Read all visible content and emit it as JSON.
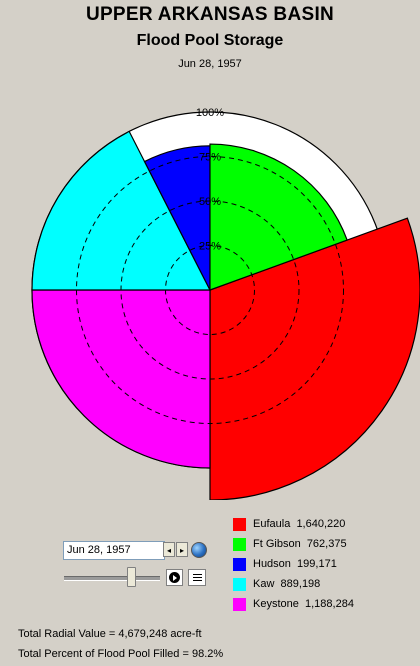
{
  "header": {
    "title": "UPPER ARKANSAS BASIN",
    "subtitle": "Flood Pool Storage",
    "date": "Jun 28, 1957"
  },
  "chart_data": {
    "type": "polar-area",
    "title": "UPPER ARKANSAS BASIN",
    "subtitle": "Flood Pool Storage",
    "radial_ticks": [
      "25%",
      "50%",
      "75%",
      "100%"
    ],
    "radial_tick_values": [
      25,
      50,
      75,
      100
    ],
    "categories": [
      "Eufaula",
      "Keystone",
      "Kaw",
      "Hudson",
      "Ft Gibson"
    ],
    "series": [
      {
        "name": "Eufaula",
        "storage": "1,640,220",
        "percent_filled": 118,
        "start_deg": -20,
        "end_deg": 90,
        "color": "#ff0000"
      },
      {
        "name": "Keystone",
        "storage": "1,188,284",
        "percent_filled": 100,
        "start_deg": 90,
        "end_deg": 180,
        "color": "#ff00ff"
      },
      {
        "name": "Kaw",
        "storage": "889,198",
        "percent_filled": 100,
        "start_deg": 180,
        "end_deg": 243,
        "color": "#00ffff"
      },
      {
        "name": "Hudson",
        "storage": "199,171",
        "percent_filled": 81,
        "start_deg": 243,
        "end_deg": 270,
        "color": "#0000ff"
      },
      {
        "name": "Ft Gibson",
        "storage": "762,375",
        "percent_filled": 82,
        "start_deg": 270,
        "end_deg": 340,
        "color": "#00ff00"
      }
    ],
    "legend_position": "bottom-right"
  },
  "legend": [
    {
      "name": "Eufaula",
      "value": "1,640,220",
      "color": "#ff0000"
    },
    {
      "name": "Ft Gibson",
      "value": "762,375",
      "color": "#00ff00"
    },
    {
      "name": "Hudson",
      "value": "199,171",
      "color": "#0000ff"
    },
    {
      "name": "Kaw",
      "value": "889,198",
      "color": "#00ffff"
    },
    {
      "name": "Keystone",
      "value": "1,188,284",
      "color": "#ff00ff"
    }
  ],
  "controls": {
    "date_value": "Jun 28, 1957",
    "prev_glyph": "◂",
    "next_glyph": "▸",
    "globe_icon": "globe-icon",
    "play_icon": "play-icon",
    "notes_icon": "notes-icon"
  },
  "footer": {
    "total_radial": "Total Radial Value =  4,679,248 acre-ft",
    "total_percent": "Total Percent of Flood Pool Filled  =  98.2%"
  }
}
